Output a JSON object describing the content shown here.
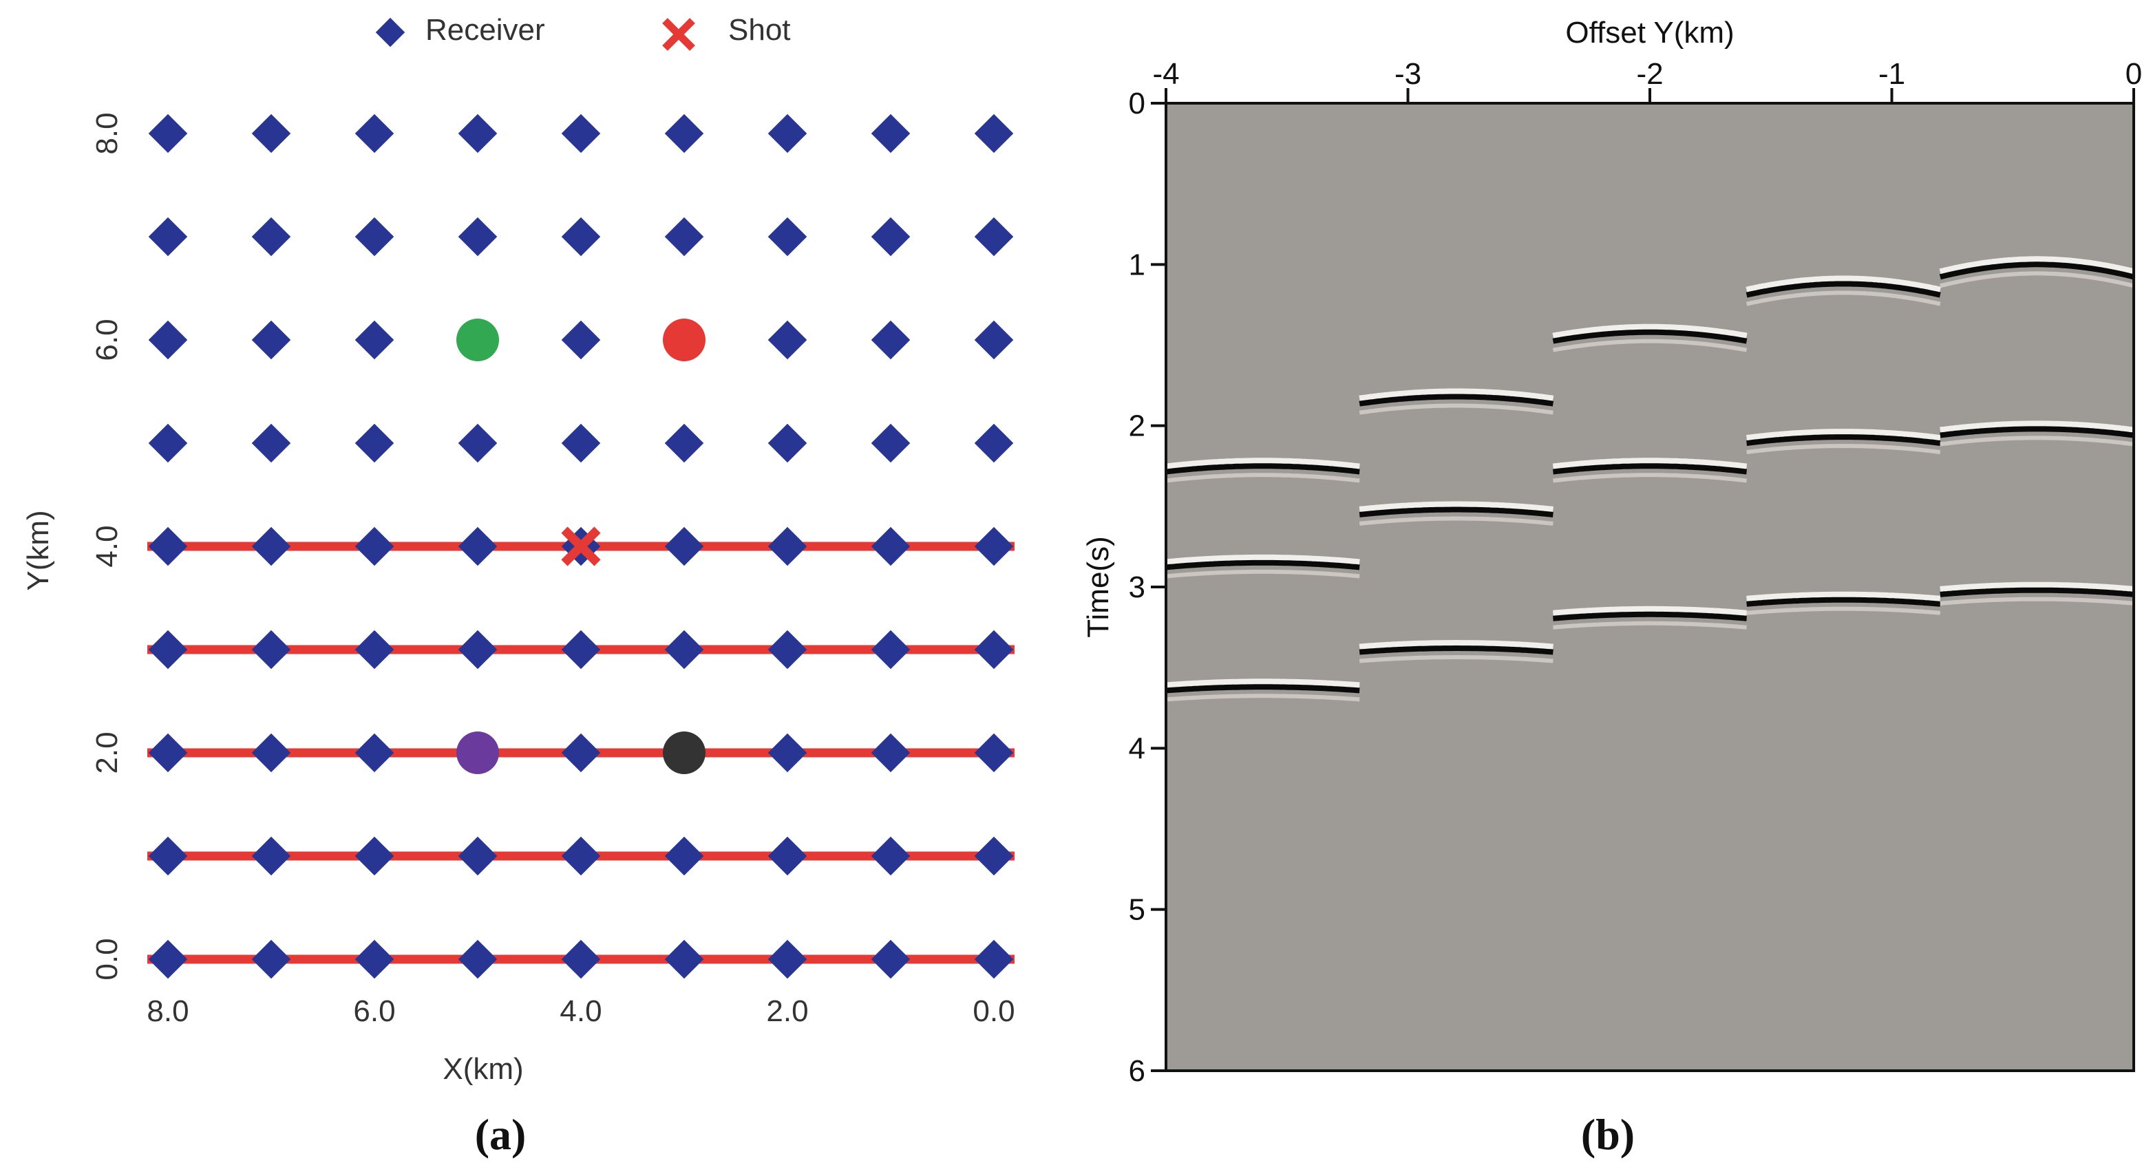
{
  "colors": {
    "receiver": "#283593",
    "shot": "#e53935",
    "line": "#e53935",
    "green": "#33a853",
    "red": "#e53935",
    "purple": "#6a3b9c",
    "black": "#333333",
    "seismic_bg": "#9e9a95",
    "axis": "#111111"
  },
  "chart_data": [
    {
      "type": "scatter",
      "panel_label": "(a)",
      "xlabel": "X(km)",
      "ylabel": "Y(km)",
      "xlim": [
        8.0,
        0.0
      ],
      "ylim": [
        0.0,
        8.0
      ],
      "x_ticks": [
        "8.0",
        "6.0",
        "4.0",
        "2.0",
        "0.0"
      ],
      "x_tick_values": [
        8,
        6,
        4,
        2,
        0
      ],
      "y_ticks": [
        "0.0",
        "2.0",
        "4.0",
        "6.0",
        "8.0"
      ],
      "y_tick_values": [
        0,
        2,
        4,
        6,
        8
      ],
      "legend": [
        {
          "label": "Receiver",
          "marker": "diamond"
        },
        {
          "label": "Shot",
          "marker": "cross"
        }
      ],
      "receivers": {
        "x": [
          8,
          7,
          6,
          5,
          4,
          3,
          2,
          1,
          0
        ],
        "y": [
          0,
          1,
          2,
          3,
          4,
          5,
          6,
          7,
          8
        ]
      },
      "receiver_lines_y": [
        0,
        1,
        2,
        3,
        4
      ],
      "shot": {
        "x": 4,
        "y": 4
      },
      "highlight_points": [
        {
          "name": "green",
          "x": 5,
          "y": 6
        },
        {
          "name": "red",
          "x": 3,
          "y": 6
        },
        {
          "name": "purple",
          "x": 5,
          "y": 2
        },
        {
          "name": "black",
          "x": 3,
          "y": 2
        }
      ]
    },
    {
      "type": "seismic-gather",
      "panel_label": "(b)",
      "title": "Offset Y(km)",
      "ylabel": "Time(s)",
      "xlim": [
        -4,
        0
      ],
      "ylim": [
        0,
        6
      ],
      "x_ticks": [
        "-4",
        "-3",
        "-2",
        "-1",
        "0"
      ],
      "x_tick_values": [
        -4,
        -3,
        -2,
        -1,
        0
      ],
      "y_ticks": [
        "0",
        "1",
        "2",
        "3",
        "4",
        "5",
        "6"
      ],
      "y_tick_values": [
        0,
        1,
        2,
        3,
        4,
        5,
        6
      ],
      "segment_edges_km": [
        -4.0,
        -3.2,
        -2.4,
        -1.6,
        -0.8,
        0.0
      ],
      "apex_offsets_km": [
        -3.6,
        -2.8,
        -2.0,
        -1.2,
        -0.4
      ],
      "hyperbolas": [
        {
          "event": 1,
          "apex_times_s": [
            2.25,
            1.82,
            1.42,
            1.12,
            1.0
          ]
        },
        {
          "event": 2,
          "apex_times_s": [
            2.85,
            2.52,
            2.25,
            2.07,
            2.02
          ]
        },
        {
          "event": 3,
          "apex_times_s": [
            3.62,
            3.38,
            3.17,
            3.08,
            3.02
          ]
        }
      ],
      "moveout_velocity_km_s": 1.0
    }
  ]
}
